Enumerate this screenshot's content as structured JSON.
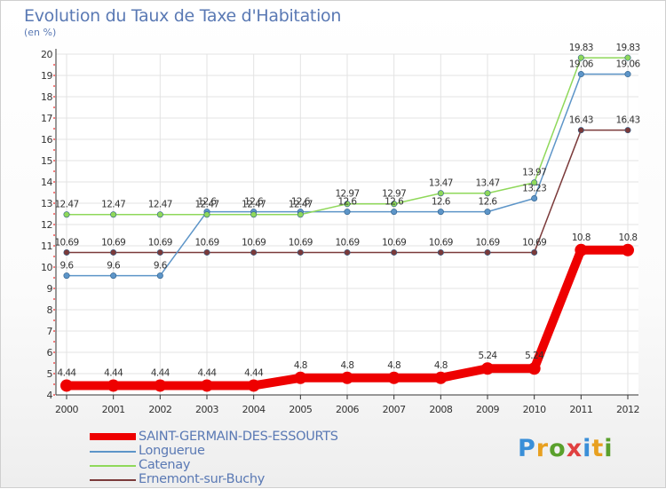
{
  "header": {
    "title": "Evolution du Taux de Taxe d'Habitation",
    "subtitle": "(en %)"
  },
  "chart_data": {
    "type": "line",
    "title": "Evolution du Taux de Taxe d'Habitation",
    "subtitle": "(en %)",
    "xlabel": "",
    "ylabel": "(en %)",
    "x": [
      "2000",
      "2001",
      "2002",
      "2003",
      "2004",
      "2005",
      "2006",
      "2007",
      "2008",
      "2009",
      "2010",
      "2011",
      "2012"
    ],
    "ylim": [
      4,
      20
    ],
    "yticks": [
      4,
      5,
      6,
      7,
      8,
      9,
      10,
      11,
      12,
      13,
      14,
      15,
      16,
      17,
      18,
      19,
      20
    ],
    "grid": true,
    "legend_position": "bottom-left",
    "series": [
      {
        "name": "SAINT-GERMAIN-DES-ESSOURTS",
        "color": "#ee0000",
        "values": [
          4.44,
          4.44,
          4.44,
          4.44,
          4.44,
          4.8,
          4.8,
          4.8,
          4.8,
          5.24,
          5.24,
          10.8,
          10.8
        ],
        "labels": [
          "4.44",
          "4.44",
          "4.44",
          "4.44",
          "4.44",
          "4.8",
          "4.8",
          "4.8",
          "4.8",
          "5.24",
          "5.24",
          "10.8",
          "10.8"
        ]
      },
      {
        "name": "Longuerue",
        "color": "#5d95c8",
        "values": [
          9.6,
          9.6,
          9.6,
          12.6,
          12.6,
          12.6,
          12.6,
          12.6,
          12.6,
          12.6,
          13.23,
          19.06,
          19.06
        ],
        "labels": [
          "9.6",
          "9.6",
          "9.6",
          "12.6",
          "12.6",
          "12.6",
          "12.6",
          "12.6",
          "12.6",
          "12.6",
          "13.23",
          "19.06",
          "19.06"
        ]
      },
      {
        "name": "Catenay",
        "color": "#8fd85a",
        "values": [
          12.47,
          12.47,
          12.47,
          12.47,
          12.47,
          12.47,
          12.97,
          12.97,
          13.47,
          13.47,
          13.97,
          19.83,
          19.83
        ],
        "labels": [
          "12.47",
          "12.47",
          "12.47",
          "12.47",
          "12.47",
          "12.47",
          "12.97",
          "12.97",
          "13.47",
          "13.47",
          "13.97",
          "19.83",
          "19.83"
        ]
      },
      {
        "name": "Ernemont-sur-Buchy",
        "color": "#7b3a3a",
        "values": [
          10.69,
          10.69,
          10.69,
          10.69,
          10.69,
          10.69,
          10.69,
          10.69,
          10.69,
          10.69,
          10.69,
          16.43,
          16.43
        ],
        "labels": [
          "10.69",
          "10.69",
          "10.69",
          "10.69",
          "10.69",
          "10.69",
          "10.69",
          "10.69",
          "10.69",
          "10.69",
          "10.69",
          "16.43",
          "16.43"
        ]
      }
    ]
  },
  "legend": {
    "items": [
      {
        "label": "SAINT-GERMAIN-DES-ESSOURTS",
        "color": "#ee0000"
      },
      {
        "label": "Longuerue",
        "color": "#5d95c8"
      },
      {
        "label": "Catenay",
        "color": "#8fd85a"
      },
      {
        "label": "Ernemont-sur-Buchy",
        "color": "#7b3a3a"
      }
    ]
  },
  "logo": {
    "text": "Proxiti",
    "colors": [
      "#3a8fd8",
      "#e8a020",
      "#5aa02c",
      "#e04040",
      "#3a8fd8",
      "#e8a020",
      "#5aa02c"
    ]
  }
}
